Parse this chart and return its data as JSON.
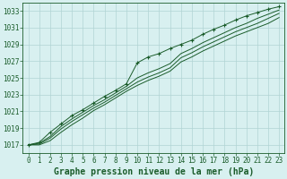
{
  "title": "Graphe pression niveau de la mer (hPa)",
  "background_color": "#d8f0f0",
  "grid_color": "#b0d4d4",
  "line_color": "#1a5c2a",
  "xlim": [
    -0.5,
    23.5
  ],
  "ylim": [
    1016.0,
    1034.0
  ],
  "yticks": [
    1017,
    1019,
    1021,
    1023,
    1025,
    1027,
    1029,
    1031,
    1033
  ],
  "xticks": [
    0,
    1,
    2,
    3,
    4,
    5,
    6,
    7,
    8,
    9,
    10,
    11,
    12,
    13,
    14,
    15,
    16,
    17,
    18,
    19,
    20,
    21,
    22,
    23
  ],
  "series": [
    [
      1017.0,
      1017.3,
      1018.5,
      1019.5,
      1020.5,
      1021.2,
      1022.0,
      1022.8,
      1023.5,
      1024.3,
      1026.8,
      1027.5,
      1027.9,
      1028.5,
      1029.0,
      1029.5,
      1030.2,
      1030.8,
      1031.3,
      1031.9,
      1032.4,
      1032.8,
      1033.2,
      1033.5
    ],
    [
      1017.0,
      1017.2,
      1018.0,
      1019.2,
      1020.1,
      1020.9,
      1021.7,
      1022.4,
      1023.2,
      1024.0,
      1025.0,
      1025.6,
      1026.1,
      1026.7,
      1027.9,
      1028.5,
      1029.2,
      1029.8,
      1030.4,
      1031.0,
      1031.5,
      1032.1,
      1032.6,
      1033.1
    ],
    [
      1017.0,
      1017.1,
      1017.8,
      1018.9,
      1019.8,
      1020.6,
      1021.4,
      1022.1,
      1022.9,
      1023.7,
      1024.5,
      1025.1,
      1025.6,
      1026.2,
      1027.4,
      1028.0,
      1028.7,
      1029.3,
      1029.9,
      1030.5,
      1031.0,
      1031.5,
      1032.1,
      1032.7
    ],
    [
      1017.0,
      1017.0,
      1017.5,
      1018.5,
      1019.4,
      1020.2,
      1021.1,
      1021.8,
      1022.6,
      1023.4,
      1024.1,
      1024.7,
      1025.2,
      1025.8,
      1026.9,
      1027.5,
      1028.2,
      1028.8,
      1029.4,
      1030.0,
      1030.5,
      1031.0,
      1031.5,
      1032.2
    ]
  ],
  "title_fontsize": 7,
  "tick_fontsize": 5.5
}
